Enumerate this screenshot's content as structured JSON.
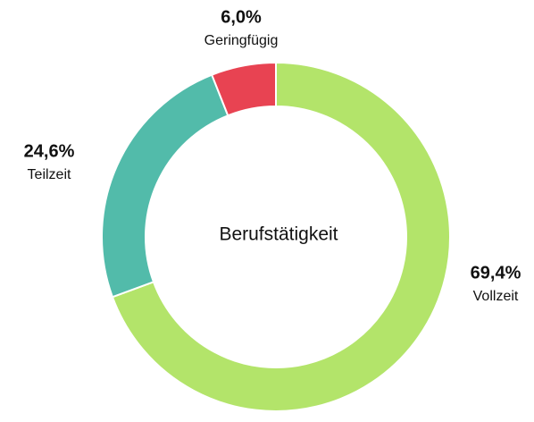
{
  "chart_data": {
    "type": "donut",
    "title": "Berufstätigkeit",
    "categories": [
      "Vollzeit",
      "Teilzeit",
      "Geringfügig"
    ],
    "values": [
      69.4,
      24.6,
      6.0
    ],
    "value_labels": [
      "69,4%",
      "24,6%",
      "6,0%"
    ],
    "colors": [
      "#b3e46a",
      "#52bbaa",
      "#e84352"
    ]
  }
}
